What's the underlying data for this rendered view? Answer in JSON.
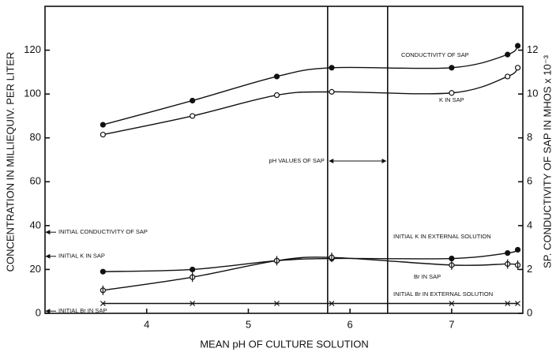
{
  "chart_data": {
    "type": "line",
    "xlabel": "MEAN pH OF CULTURE SOLUTION",
    "ylabel": "CONCENTRATION IN MILLIEQUIV. PER LITER",
    "y2label": "SP. CONDUCTIVITY OF SAP IN MHOS x 10⁻³",
    "x": [
      3.57,
      4.45,
      5.28,
      5.82,
      7.0,
      7.55,
      7.65
    ],
    "series": [
      {
        "name": "CONDUCTIVITY OF SAP",
        "axis": "y2",
        "marker": "filled",
        "color": "#111",
        "values": [
          8.6,
          9.7,
          10.8,
          11.2,
          11.2,
          11.8,
          12.2
        ]
      },
      {
        "name": "K IN SAP",
        "marker": "open",
        "color": "#111",
        "values": [
          81.5,
          90,
          99.5,
          101,
          100.5,
          108,
          112
        ]
      },
      {
        "name": "INITIAL K IN EXTERNAL SOLUTION",
        "marker": "filled",
        "color": "#111",
        "values": [
          19,
          20,
          24,
          25,
          25,
          27.5,
          29
        ]
      },
      {
        "name": "Br IN SAP",
        "marker": "bar",
        "color": "#111",
        "values": [
          10.5,
          16.5,
          24,
          25.5,
          22,
          22.5,
          22
        ]
      },
      {
        "name": "INITIAL Br IN EXTERNAL SOLUTION",
        "marker": "x",
        "color": "#111",
        "values": [
          4.5,
          4.5,
          4.5,
          4.5,
          4.5,
          4.5,
          4.5
        ]
      }
    ],
    "annotations": [
      {
        "text": "INITIAL CONDUCTIVITY OF SAP",
        "y": 37
      },
      {
        "text": "INITIAL K IN SAP",
        "y": 26
      },
      {
        "text": "INITIAL Br IN SAP",
        "y": 1
      }
    ],
    "ph_range": {
      "text": "pH VALUES OF SAP",
      "x": [
        5.78,
        6.37
      ]
    },
    "xlim": [
      3,
      7.7
    ],
    "xticks": [
      4,
      5,
      6,
      7
    ],
    "ylim": [
      0,
      140
    ],
    "yticks": [
      0,
      20,
      40,
      60,
      80,
      100,
      120
    ],
    "y2lim": [
      0,
      14
    ],
    "y2ticks": [
      0,
      2,
      4,
      6,
      8,
      10,
      12
    ]
  }
}
